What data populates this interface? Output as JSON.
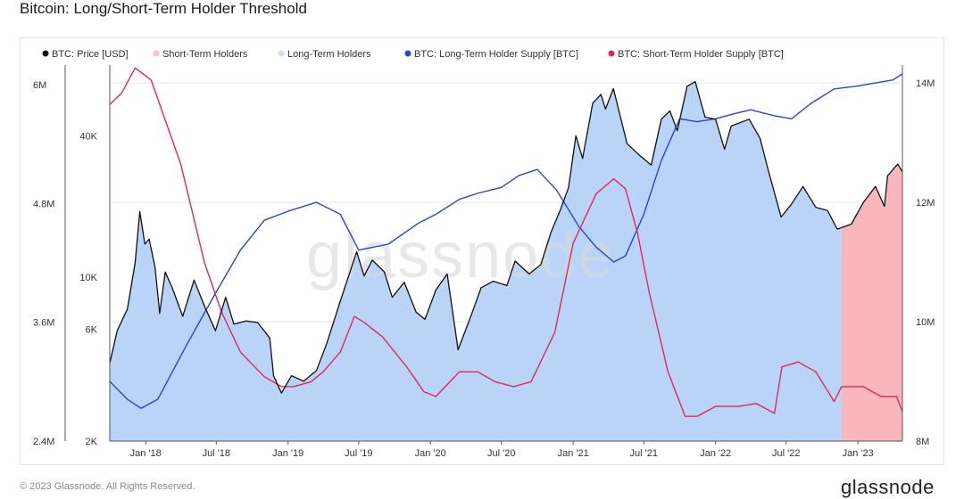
{
  "page": {
    "title": "Bitcoin: Long/Short-Term Holder Threshold",
    "watermark": "glassnode",
    "copyright": "© 2023 Glassnode. All Rights Reserved.",
    "brand": "glassnode"
  },
  "colors": {
    "price": "#111111",
    "sth_fill": "#f7b7bd",
    "lth_fill": "#b9d4f7",
    "lth_supply": "#2a47c9",
    "sth_supply": "#e2285a",
    "grid": "#e6e6e6"
  },
  "chart_data": {
    "type": "area",
    "title": "Bitcoin: Long/Short-Term Holder Threshold",
    "legend": [
      {
        "name": "BTC: Price [USD]",
        "color": "#111111",
        "marker": "dot"
      },
      {
        "name": "Short-Term Holders",
        "color": "#f7c4c8",
        "marker": "dot"
      },
      {
        "name": "Long-Term Holders",
        "color": "#cfe1f7",
        "marker": "dot"
      },
      {
        "name": "BTC: Long-Term Holder Supply [BTC]",
        "color": "#2a47c9",
        "marker": "dot"
      },
      {
        "name": "BTC: Short-Term Holder Supply [BTC]",
        "color": "#e2285a",
        "marker": "dot"
      }
    ],
    "legend_position": "top-left",
    "x_axis": {
      "range": [
        "2017-10-01",
        "2023-04-25"
      ],
      "ticks": [
        {
          "date": "2018-01-01",
          "label": "Jan '18"
        },
        {
          "date": "2018-07-01",
          "label": "Jul '18"
        },
        {
          "date": "2019-01-01",
          "label": "Jan '19"
        },
        {
          "date": "2019-07-01",
          "label": "Jul '19"
        },
        {
          "date": "2020-01-01",
          "label": "Jan '20"
        },
        {
          "date": "2020-07-01",
          "label": "Jul '20"
        },
        {
          "date": "2021-01-01",
          "label": "Jan '21"
        },
        {
          "date": "2021-07-01",
          "label": "Jul '21"
        },
        {
          "date": "2022-01-01",
          "label": "Jan '22"
        },
        {
          "date": "2022-07-01",
          "label": "Jul '22"
        },
        {
          "date": "2023-01-01",
          "label": "Jan '23"
        }
      ]
    },
    "y_left_supply": {
      "range": [
        2400000,
        6200000
      ],
      "ticks": [
        {
          "value": 2400000,
          "label": "2.4M"
        },
        {
          "value": 3600000,
          "label": "3.6M"
        },
        {
          "value": 4800000,
          "label": "4.8M"
        },
        {
          "value": 6000000,
          "label": "6M"
        }
      ]
    },
    "y_left_price": {
      "scale": "log",
      "range": [
        2000,
        80000
      ],
      "ticks": [
        {
          "value": 2000,
          "label": "2K"
        },
        {
          "value": 6000,
          "label": "6K"
        },
        {
          "value": 10000,
          "label": "10K"
        },
        {
          "value": 40000,
          "label": "40K"
        }
      ]
    },
    "y_right_supply": {
      "range": [
        8000000,
        14300000
      ],
      "ticks": [
        {
          "value": 8000000,
          "label": "8M"
        },
        {
          "value": 10000000,
          "label": "10M"
        },
        {
          "value": 12000000,
          "label": "12M"
        },
        {
          "value": 14000000,
          "label": "14M"
        }
      ]
    },
    "regime": {
      "long_term_holders": {
        "from": "2017-10-01",
        "to": "2022-11-20"
      },
      "short_term_holders": {
        "from": "2022-11-20",
        "to": "2023-04-25"
      }
    },
    "series": [
      {
        "name": "BTC: Price [USD]",
        "axis": "y_left_price",
        "points": [
          [
            "2017-10-01",
            4300
          ],
          [
            "2017-10-20",
            5900
          ],
          [
            "2017-11-15",
            7300
          ],
          [
            "2017-12-05",
            11500
          ],
          [
            "2017-12-17",
            19000
          ],
          [
            "2017-12-30",
            13800
          ],
          [
            "2018-01-10",
            14500
          ],
          [
            "2018-01-25",
            11000
          ],
          [
            "2018-02-06",
            7000
          ],
          [
            "2018-02-20",
            10500
          ],
          [
            "2018-03-10",
            9000
          ],
          [
            "2018-04-06",
            6800
          ],
          [
            "2018-05-05",
            9700
          ],
          [
            "2018-06-01",
            7500
          ],
          [
            "2018-06-29",
            5900
          ],
          [
            "2018-07-25",
            8200
          ],
          [
            "2018-08-15",
            6300
          ],
          [
            "2018-09-15",
            6500
          ],
          [
            "2018-10-15",
            6400
          ],
          [
            "2018-11-15",
            5500
          ],
          [
            "2018-11-25",
            3800
          ],
          [
            "2018-12-15",
            3200
          ],
          [
            "2019-01-10",
            3800
          ],
          [
            "2019-02-10",
            3600
          ],
          [
            "2019-03-15",
            4000
          ],
          [
            "2019-04-10",
            5200
          ],
          [
            "2019-05-15",
            7900
          ],
          [
            "2019-06-26",
            12800
          ],
          [
            "2019-07-15",
            10100
          ],
          [
            "2019-08-05",
            11800
          ],
          [
            "2019-09-05",
            10500
          ],
          [
            "2019-09-25",
            8200
          ],
          [
            "2019-10-26",
            9500
          ],
          [
            "2019-11-25",
            7100
          ],
          [
            "2019-12-18",
            6600
          ],
          [
            "2020-01-15",
            8800
          ],
          [
            "2020-02-13",
            10300
          ],
          [
            "2020-03-12",
            4900
          ],
          [
            "2020-04-15",
            6900
          ],
          [
            "2020-05-10",
            9000
          ],
          [
            "2020-06-10",
            9600
          ],
          [
            "2020-07-15",
            9200
          ],
          [
            "2020-08-05",
            11700
          ],
          [
            "2020-09-10",
            10300
          ],
          [
            "2020-10-10",
            11300
          ],
          [
            "2020-11-05",
            15500
          ],
          [
            "2020-11-30",
            19500
          ],
          [
            "2020-12-20",
            24000
          ],
          [
            "2021-01-08",
            40000
          ],
          [
            "2021-01-25",
            32000
          ],
          [
            "2021-02-20",
            55000
          ],
          [
            "2021-03-13",
            60000
          ],
          [
            "2021-03-25",
            52000
          ],
          [
            "2021-04-14",
            63500
          ],
          [
            "2021-05-19",
            37000
          ],
          [
            "2021-06-20",
            33000
          ],
          [
            "2021-07-20",
            30000
          ],
          [
            "2021-08-15",
            47000
          ],
          [
            "2021-09-06",
            51000
          ],
          [
            "2021-09-25",
            42000
          ],
          [
            "2021-10-20",
            65000
          ],
          [
            "2021-11-10",
            68000
          ],
          [
            "2021-12-05",
            48000
          ],
          [
            "2022-01-01",
            47000
          ],
          [
            "2022-01-24",
            35000
          ],
          [
            "2022-02-10",
            44000
          ],
          [
            "2022-03-28",
            47000
          ],
          [
            "2022-04-25",
            39000
          ],
          [
            "2022-05-15",
            29000
          ],
          [
            "2022-06-18",
            18000
          ],
          [
            "2022-07-15",
            20500
          ],
          [
            "2022-08-13",
            24300
          ],
          [
            "2022-09-15",
            19800
          ],
          [
            "2022-10-15",
            19200
          ],
          [
            "2022-11-09",
            16000
          ],
          [
            "2022-12-15",
            16800
          ],
          [
            "2023-01-15",
            20800
          ],
          [
            "2023-02-15",
            24300
          ],
          [
            "2023-03-10",
            20000
          ],
          [
            "2023-03-18",
            27000
          ],
          [
            "2023-04-13",
            30300
          ],
          [
            "2023-04-25",
            28000
          ]
        ]
      },
      {
        "name": "BTC: Long-Term Holder Supply [BTC]",
        "axis": "y_right_supply",
        "points": [
          [
            "2017-10-01",
            9000000
          ],
          [
            "2017-11-15",
            8700000
          ],
          [
            "2017-12-20",
            8550000
          ],
          [
            "2018-02-01",
            8700000
          ],
          [
            "2018-04-15",
            9600000
          ],
          [
            "2018-07-01",
            10500000
          ],
          [
            "2018-09-01",
            11200000
          ],
          [
            "2018-11-01",
            11700000
          ],
          [
            "2019-01-01",
            11850000
          ],
          [
            "2019-03-15",
            12000000
          ],
          [
            "2019-05-15",
            11800000
          ],
          [
            "2019-07-01",
            11200000
          ],
          [
            "2019-09-15",
            11300000
          ],
          [
            "2019-12-01",
            11650000
          ],
          [
            "2020-01-15",
            11800000
          ],
          [
            "2020-03-15",
            12050000
          ],
          [
            "2020-05-01",
            12150000
          ],
          [
            "2020-07-01",
            12250000
          ],
          [
            "2020-08-15",
            12450000
          ],
          [
            "2020-10-01",
            12550000
          ],
          [
            "2020-11-20",
            12200000
          ],
          [
            "2021-01-15",
            11600000
          ],
          [
            "2021-03-01",
            11250000
          ],
          [
            "2021-04-15",
            11000000
          ],
          [
            "2021-05-15",
            11100000
          ],
          [
            "2021-07-01",
            11800000
          ],
          [
            "2021-08-15",
            12700000
          ],
          [
            "2021-10-01",
            13400000
          ],
          [
            "2021-11-15",
            13350000
          ],
          [
            "2022-01-01",
            13400000
          ],
          [
            "2022-02-15",
            13480000
          ],
          [
            "2022-04-01",
            13550000
          ],
          [
            "2022-06-01",
            13450000
          ],
          [
            "2022-07-15",
            13400000
          ],
          [
            "2022-09-01",
            13650000
          ],
          [
            "2022-11-01",
            13900000
          ],
          [
            "2023-01-01",
            13950000
          ],
          [
            "2023-02-15",
            14000000
          ],
          [
            "2023-04-01",
            14050000
          ],
          [
            "2023-04-25",
            14150000
          ]
        ]
      },
      {
        "name": "BTC: Short-Term Holder Supply [BTC]",
        "axis": "y_left_supply",
        "points": [
          [
            "2017-10-01",
            5800000
          ],
          [
            "2017-11-01",
            5920000
          ],
          [
            "2017-12-05",
            6170000
          ],
          [
            "2018-01-15",
            6050000
          ],
          [
            "2018-02-15",
            5700000
          ],
          [
            "2018-04-01",
            5200000
          ],
          [
            "2018-06-01",
            4200000
          ],
          [
            "2018-07-15",
            3700000
          ],
          [
            "2018-09-01",
            3300000
          ],
          [
            "2018-11-01",
            3050000
          ],
          [
            "2018-12-15",
            2950000
          ],
          [
            "2019-01-15",
            2950000
          ],
          [
            "2019-03-01",
            3000000
          ],
          [
            "2019-04-01",
            3100000
          ],
          [
            "2019-05-15",
            3300000
          ],
          [
            "2019-06-20",
            3660000
          ],
          [
            "2019-07-15",
            3600000
          ],
          [
            "2019-09-01",
            3450000
          ],
          [
            "2019-11-01",
            3150000
          ],
          [
            "2019-12-15",
            2900000
          ],
          [
            "2020-01-15",
            2850000
          ],
          [
            "2020-03-15",
            3100000
          ],
          [
            "2020-05-01",
            3100000
          ],
          [
            "2020-06-15",
            3000000
          ],
          [
            "2020-08-01",
            2950000
          ],
          [
            "2020-09-15",
            3000000
          ],
          [
            "2020-11-15",
            3500000
          ],
          [
            "2021-01-01",
            4400000
          ],
          [
            "2021-03-01",
            4900000
          ],
          [
            "2021-04-15",
            5050000
          ],
          [
            "2021-05-15",
            4950000
          ],
          [
            "2021-06-15",
            4500000
          ],
          [
            "2021-07-15",
            3900000
          ],
          [
            "2021-09-01",
            3100000
          ],
          [
            "2021-10-15",
            2650000
          ],
          [
            "2021-11-15",
            2650000
          ],
          [
            "2022-01-01",
            2750000
          ],
          [
            "2022-03-01",
            2750000
          ],
          [
            "2022-04-15",
            2780000
          ],
          [
            "2022-06-01",
            2680000
          ],
          [
            "2022-06-20",
            3150000
          ],
          [
            "2022-08-01",
            3200000
          ],
          [
            "2022-09-15",
            3100000
          ],
          [
            "2022-11-01",
            2800000
          ],
          [
            "2022-11-20",
            2950000
          ],
          [
            "2023-01-15",
            2950000
          ],
          [
            "2023-03-01",
            2850000
          ],
          [
            "2023-04-10",
            2850000
          ],
          [
            "2023-04-25",
            2700000
          ]
        ]
      }
    ]
  }
}
